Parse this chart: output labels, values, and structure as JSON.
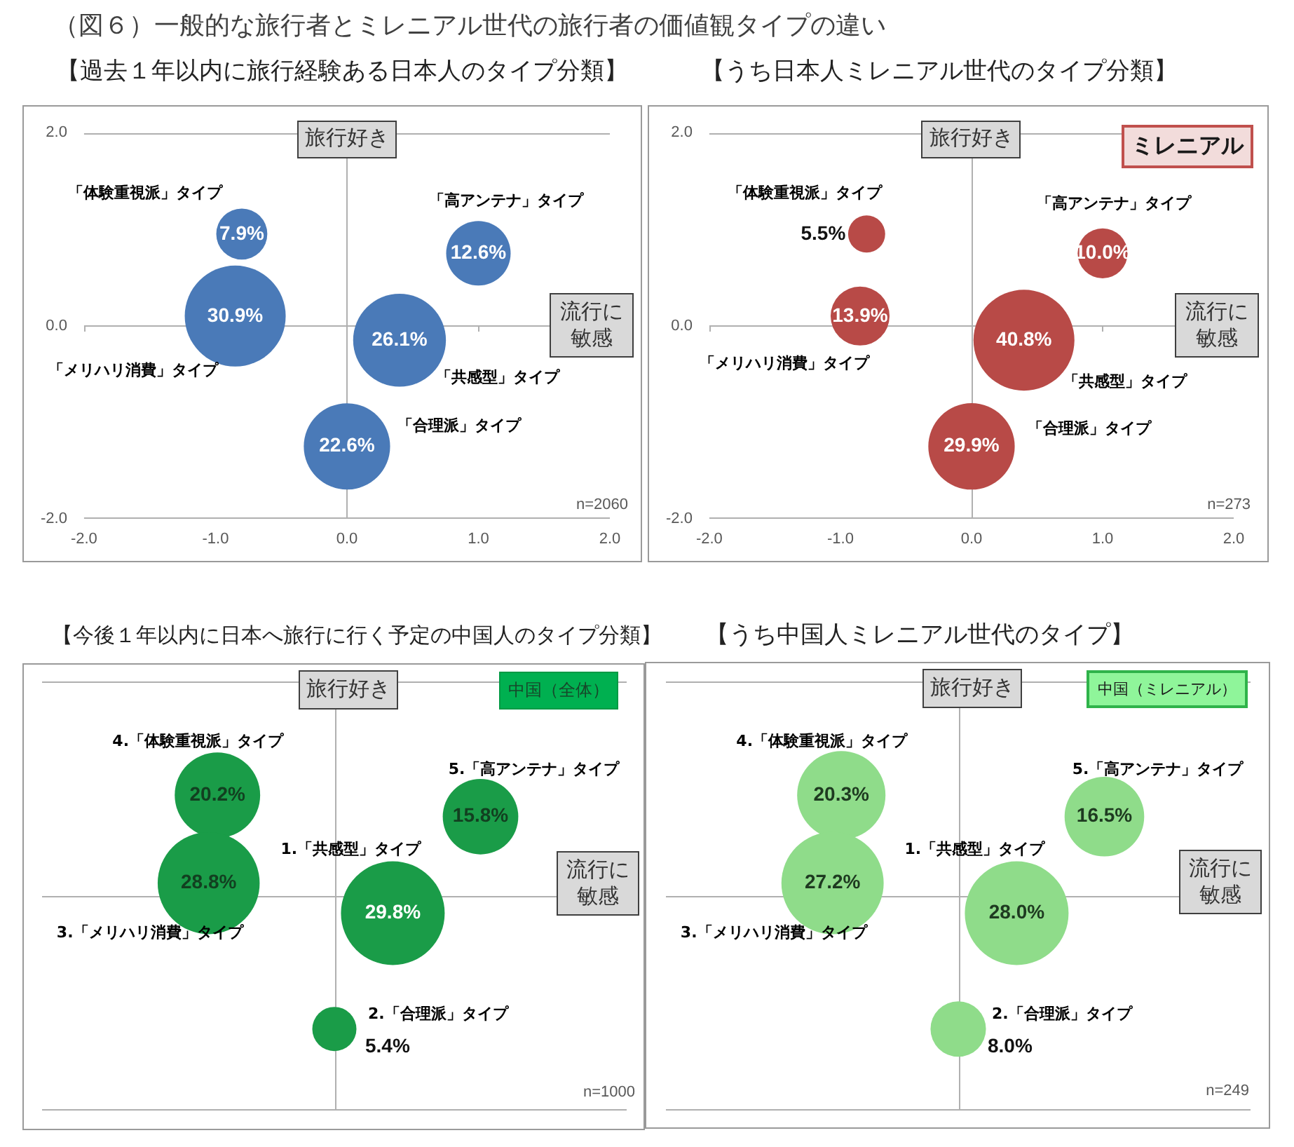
{
  "chart_data": [
    {
      "type": "bubble",
      "title": "（図６）一般的な旅行者とミレニアル世代の旅行者の価値観タイプの違い",
      "subtitle": "【過去１年以内に旅行経験ある日本人のタイプ分類】",
      "xlabel": "流行に敏感",
      "ylabel": "旅行好き",
      "xlim": [
        -2,
        2
      ],
      "ylim": [
        -2,
        2
      ],
      "xticks": [
        {
          "value": -2,
          "label": "-2.0"
        },
        {
          "value": -1,
          "label": "-1.0"
        },
        {
          "value": 0,
          "label": "0.0"
        },
        {
          "value": 1,
          "label": "1.0"
        },
        {
          "value": 2,
          "label": "2.0"
        }
      ],
      "yticks": [
        {
          "value": -2,
          "label": "-2.0"
        },
        {
          "value": 0,
          "label": "0.0"
        },
        {
          "value": 2,
          "label": "2.0"
        }
      ],
      "annotations": [
        "n=2060"
      ],
      "series": [
        {
          "name": "「共感型」タイプ",
          "color": "#4a7ab8",
          "x": [
            0.4
          ],
          "values": [
            -0.15
          ],
          "sizes": [
            26.1
          ],
          "value_labels": [
            "26.1%"
          ]
        },
        {
          "name": "「合理派」タイプ",
          "color": "#4a7ab8",
          "x": [
            0
          ],
          "values": [
            -1.25
          ],
          "sizes": [
            22.6
          ],
          "value_labels": [
            "22.6%"
          ]
        },
        {
          "name": "「メリハリ消費」タイプ",
          "color": "#4a7ab8",
          "x": [
            -0.85
          ],
          "values": [
            0.1
          ],
          "sizes": [
            30.9
          ],
          "value_labels": [
            "30.9%"
          ]
        },
        {
          "name": "「体験重視派」タイプ",
          "color": "#4a7ab8",
          "x": [
            -0.8
          ],
          "values": [
            0.95
          ],
          "sizes": [
            7.9
          ],
          "value_labels": [
            "7.9%"
          ]
        },
        {
          "name": "「高アンテナ」タイプ",
          "color": "#4a7ab8",
          "x": [
            1.0
          ],
          "values": [
            0.75
          ],
          "sizes": [
            12.6
          ],
          "value_labels": [
            "12.6%"
          ]
        }
      ]
    },
    {
      "type": "bubble",
      "subtitle": "【うち日本人ミレニアル世代のタイプ分類】",
      "xlabel": "流行に敏感",
      "ylabel": "旅行好き",
      "xlim": [
        -2,
        2
      ],
      "ylim": [
        -2,
        2
      ],
      "xticks": [
        {
          "value": -2,
          "label": "-2.0"
        },
        {
          "value": -1,
          "label": "-1.0"
        },
        {
          "value": 0,
          "label": "0.0"
        },
        {
          "value": 1,
          "label": "1.0"
        },
        {
          "value": 2,
          "label": "2.0"
        }
      ],
      "yticks": [
        {
          "value": -2,
          "label": "-2.0"
        },
        {
          "value": 0,
          "label": "0.0"
        },
        {
          "value": 2,
          "label": "2.0"
        }
      ],
      "annotations": [
        "ミレニアル",
        "n=273"
      ],
      "series": [
        {
          "name": "「共感型」タイプ",
          "color": "#b84a47",
          "x": [
            0.4
          ],
          "values": [
            -0.15
          ],
          "sizes": [
            40.8
          ],
          "value_labels": [
            "40.8%"
          ]
        },
        {
          "name": "「合理派」タイプ",
          "color": "#b84a47",
          "x": [
            0
          ],
          "values": [
            -1.25
          ],
          "sizes": [
            29.9
          ],
          "value_labels": [
            "29.9%"
          ]
        },
        {
          "name": "「メリハリ消費」タイプ",
          "color": "#b84a47",
          "x": [
            -0.85
          ],
          "values": [
            0.1
          ],
          "sizes": [
            13.9
          ],
          "value_labels": [
            "13.9%"
          ]
        },
        {
          "name": "「体験重視派」タイプ",
          "color": "#b84a47",
          "x": [
            -0.8
          ],
          "values": [
            0.95
          ],
          "sizes": [
            5.5
          ],
          "value_labels": [
            "5.5%"
          ]
        },
        {
          "name": "「高アンテナ」タイプ",
          "color": "#b84a47",
          "x": [
            1.0
          ],
          "values": [
            0.75
          ],
          "sizes": [
            10.0
          ],
          "value_labels": [
            "10.0%"
          ]
        }
      ]
    },
    {
      "type": "other",
      "subtitle": "【今後１年以内に日本へ旅行に行く予定の中国人のタイプ分類】",
      "categories": [
        "1.「共感型」タイプ",
        "2.「合理派」タイプ",
        "3.「メリハリ消費」タイプ",
        "4.「体験重視派」タイプ",
        "5.「高アンテナ」タイプ"
      ],
      "values": [
        29.8,
        5.4,
        28.8,
        20.2,
        15.8
      ],
      "value_labels": [
        "29.8%",
        "5.4%",
        "28.8%",
        "20.2%",
        "15.8%"
      ],
      "color": "#1a9c48",
      "annotations": [
        "旅行好き",
        "流行に敏感",
        "中国（全体）",
        "n=1000"
      ]
    },
    {
      "type": "other",
      "subtitle": "【うち中国人ミレニアル世代のタイプ】",
      "categories": [
        "1.「共感型」タイプ",
        "2.「合理派」タイプ",
        "3.「メリハリ消費」タイプ",
        "4.「体験重視派」タイプ",
        "5.「高アンテナ」タイプ"
      ],
      "values": [
        28.0,
        8.0,
        27.2,
        20.3,
        16.5
      ],
      "value_labels": [
        "28.0%",
        "8.0%",
        "27.2%",
        "20.3%",
        "16.5%"
      ],
      "color": "#8fdc8a",
      "annotations": [
        "旅行好き",
        "流行に敏感",
        "中国（ミレニアル）",
        "n=249"
      ]
    }
  ]
}
